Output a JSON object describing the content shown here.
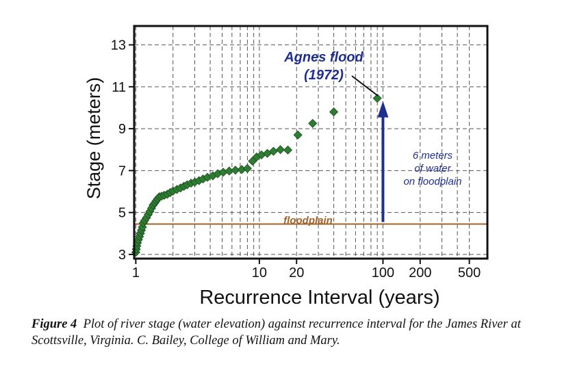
{
  "chart_data": {
    "type": "scatter",
    "x_scale": "log",
    "xlabel": "Recurrence Interval (years)",
    "ylabel": "Stage (meters)",
    "xlim": [
      0.97,
      700
    ],
    "ylim": [
      2.8,
      13.9
    ],
    "x_ticks": [
      1,
      10,
      20,
      100,
      200,
      500
    ],
    "x_tick_labels": [
      "1",
      "10",
      "20",
      "100",
      "200",
      "500"
    ],
    "x_minor_ticks": [
      2,
      3,
      4,
      5,
      6,
      7,
      8,
      9,
      30,
      40,
      50,
      60,
      70,
      80,
      90,
      300,
      400
    ],
    "y_ticks": [
      3,
      5,
      7,
      9,
      11,
      13
    ],
    "y_tick_labels": [
      "3",
      "5",
      "7",
      "9",
      "11",
      "13"
    ],
    "grid": true,
    "point_color": "#2e7d32",
    "points": [
      [
        1.0,
        3.1
      ],
      [
        1.01,
        3.25
      ],
      [
        1.02,
        3.4
      ],
      [
        1.03,
        3.55
      ],
      [
        1.05,
        3.7
      ],
      [
        1.07,
        3.85
      ],
      [
        1.09,
        4.0
      ],
      [
        1.11,
        4.15
      ],
      [
        1.13,
        4.3
      ],
      [
        1.15,
        4.5
      ],
      [
        1.18,
        4.62
      ],
      [
        1.22,
        4.75
      ],
      [
        1.26,
        4.9
      ],
      [
        1.3,
        5.05
      ],
      [
        1.34,
        5.2
      ],
      [
        1.38,
        5.35
      ],
      [
        1.42,
        5.45
      ],
      [
        1.46,
        5.55
      ],
      [
        1.5,
        5.65
      ],
      [
        1.55,
        5.75
      ],
      [
        1.62,
        5.78
      ],
      [
        1.7,
        5.82
      ],
      [
        1.8,
        5.87
      ],
      [
        1.9,
        5.95
      ],
      [
        2.0,
        6.02
      ],
      [
        2.15,
        6.1
      ],
      [
        2.3,
        6.17
      ],
      [
        2.45,
        6.25
      ],
      [
        2.6,
        6.32
      ],
      [
        2.8,
        6.4
      ],
      [
        3.0,
        6.45
      ],
      [
        3.25,
        6.52
      ],
      [
        3.5,
        6.6
      ],
      [
        3.8,
        6.68
      ],
      [
        4.2,
        6.75
      ],
      [
        4.6,
        6.85
      ],
      [
        5.1,
        6.92
      ],
      [
        5.7,
        6.98
      ],
      [
        6.4,
        7.02
      ],
      [
        7.2,
        7.05
      ],
      [
        8.0,
        7.1
      ],
      [
        8.8,
        7.45
      ],
      [
        9.5,
        7.65
      ],
      [
        10.4,
        7.75
      ],
      [
        11.6,
        7.82
      ],
      [
        13.0,
        7.92
      ],
      [
        14.8,
        8.0
      ],
      [
        17.0,
        7.98
      ],
      [
        20.5,
        8.7
      ],
      [
        27.0,
        9.25
      ],
      [
        40.0,
        9.8
      ],
      [
        90.0,
        10.45
      ]
    ],
    "floodplain_level": 4.45,
    "floodplain_label": "floodplain",
    "floodplain_color": "#a0632a",
    "arrow_color": "#1f2f8f",
    "annotations": {
      "agnes_line1": "Agnes flood",
      "agnes_line2": "(1972)",
      "water_line1": "6 meters",
      "water_line2": "of water",
      "water_line3": "on floodplain"
    }
  },
  "caption": {
    "label": "Figure 4",
    "text": "Plot of river stage (water elevation) against recurrence interval for the James River at Scottsville, Virginia.  C. Bailey, College of William and Mary."
  }
}
